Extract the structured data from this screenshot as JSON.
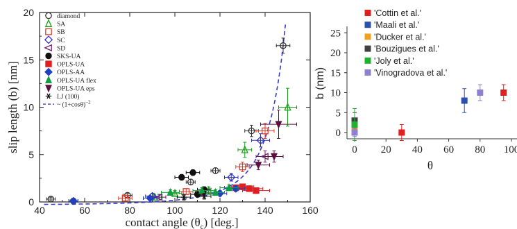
{
  "chart_data": [
    {
      "type": "scatter",
      "xlabel": "contact angle (θ",
      "xlabel_sub": "c",
      "xlabel_units": ")  [deg.]",
      "ylabel": "slip length (b)  [nm]",
      "xlim": [
        40,
        160
      ],
      "ylim": [
        0,
        20
      ],
      "xticks": [
        "40",
        "60",
        "80",
        "100",
        "120",
        "140",
        "160"
      ],
      "yticks": [
        "0",
        "5",
        "10",
        "15",
        "20"
      ],
      "grid": false,
      "legend_position": "top-left",
      "series": [
        {
          "name": "diamond",
          "marker": "circle-open",
          "color": "#333333",
          "points": [
            [
              45,
              0.3
            ],
            [
              55,
              0.1
            ],
            [
              79,
              0.7
            ],
            [
              107,
              2.1
            ],
            [
              118,
              3.3
            ],
            [
              134,
              7.5
            ],
            [
              148,
              16.5
            ]
          ],
          "xerr": [
            2,
            2,
            2,
            2,
            2,
            3,
            3
          ],
          "yerr": [
            0.2,
            0.2,
            0.2,
            0.3,
            0.3,
            0.6,
            0.8
          ]
        },
        {
          "name": "SA",
          "marker": "triangle-open",
          "color": "#1aa01a",
          "points": [
            [
              91,
              0.5
            ],
            [
              100,
              0.9
            ],
            [
              115,
              1.2
            ],
            [
              131,
              5.5
            ],
            [
              150,
              10.0
            ]
          ],
          "xerr": [
            3,
            3,
            3,
            3,
            4
          ],
          "yerr": [
            0.3,
            0.3,
            0.4,
            0.8,
            2.0
          ]
        },
        {
          "name": "SB",
          "marker": "square-open",
          "color": "#e03a2a",
          "points": [
            [
              78,
              0.4
            ],
            [
              105,
              1.1
            ],
            [
              130,
              3.7
            ],
            [
              140,
              7.5
            ]
          ],
          "xerr": [
            3,
            3,
            3,
            4
          ],
          "yerr": [
            0.3,
            0.3,
            0.5,
            0.8
          ]
        },
        {
          "name": "SC",
          "marker": "diamond-open",
          "color": "#3030c0",
          "points": [
            [
              90,
              0.6
            ],
            [
              125,
              2.6
            ],
            [
              138,
              6.5
            ]
          ],
          "xerr": [
            3,
            3,
            4
          ],
          "yerr": [
            0.3,
            0.4,
            0.7
          ]
        },
        {
          "name": "SD",
          "marker": "triangle-left-open",
          "color": "#6a1a6a",
          "points": [
            [
              93,
              0.5
            ],
            [
              112,
              1.0
            ],
            [
              140,
              4.8
            ]
          ],
          "xerr": [
            3,
            3,
            4
          ],
          "yerr": [
            0.3,
            0.3,
            0.6
          ]
        },
        {
          "name": "SKS-UA",
          "marker": "circle-filled",
          "color": "#111111",
          "points": [
            [
              103,
              2.6
            ],
            [
              108,
              3.1
            ],
            [
              110,
              0.8
            ],
            [
              113,
              1.3
            ]
          ],
          "xerr": [
            3,
            3,
            3,
            3
          ],
          "yerr": [
            0.3,
            0.3,
            0.3,
            0.3
          ]
        },
        {
          "name": "OPLS-UA",
          "marker": "square-filled",
          "color": "#e02020",
          "points": [
            [
              127,
              1.5
            ],
            [
              130,
              1.6
            ],
            [
              133,
              1.4
            ],
            [
              136,
              1.2
            ]
          ],
          "xerr": [
            5,
            5,
            6,
            6
          ],
          "yerr": [
            0.3,
            0.3,
            0.3,
            0.3
          ]
        },
        {
          "name": "OPLS-AA",
          "marker": "diamond-filled",
          "color": "#2040c0",
          "points": [
            [
              55,
              0.1
            ],
            [
              89,
              0.4
            ],
            [
              120,
              0.9
            ],
            [
              127,
              1.4
            ]
          ],
          "xerr": [
            2,
            3,
            3,
            4
          ],
          "yerr": [
            0.2,
            0.2,
            0.3,
            0.3
          ]
        },
        {
          "name": "OPLS-UA flex",
          "marker": "triangle-filled",
          "color": "#10a040",
          "points": [
            [
              98,
              1.0
            ],
            [
              112,
              1.2
            ],
            [
              118,
              1.0
            ],
            [
              124,
              1.5
            ]
          ],
          "xerr": [
            4,
            4,
            4,
            4
          ],
          "yerr": [
            0.3,
            0.3,
            0.3,
            0.3
          ]
        },
        {
          "name": "OPLS-UA eps",
          "marker": "triangle-down-filled",
          "color": "#5a1040",
          "points": [
            [
              137,
              3.9
            ],
            [
              146,
              8.2
            ],
            [
              144,
              4.8
            ]
          ],
          "xerr": [
            5,
            8,
            4
          ],
          "yerr": [
            0.5,
            1.5,
            0.6
          ]
        },
        {
          "name": "LJ (100)",
          "marker": "asterisk",
          "color": "#111111",
          "points": [
            [
              104,
              0.5
            ],
            [
              113,
              0.6
            ]
          ],
          "xerr": [
            3,
            3
          ],
          "yerr": [
            0.3,
            0.3
          ]
        }
      ],
      "fit": {
        "name": "~ (1+cosθ)",
        "name_sup": "−2",
        "style": "dashed",
        "color": "#3a3ad0",
        "equation": "b = 0.39*(1+cos(theta))^-2 - 0.39"
      }
    },
    {
      "type": "scatter",
      "xlabel": "θ",
      "ylabel": "b (nm)",
      "xlim": [
        -5,
        100
      ],
      "ylim": [
        -2,
        28
      ],
      "xticks": [
        "0",
        "20",
        "40",
        "60",
        "80",
        "100"
      ],
      "yticks": [
        "0",
        "5",
        "10",
        "15",
        "20",
        "25"
      ],
      "grid": false,
      "legend_position": "top-right",
      "series": [
        {
          "name": "'Cottin et al.'",
          "color": "#e02020",
          "points": [
            [
              30,
              0
            ],
            [
              95,
              10
            ]
          ],
          "yerr": [
            2,
            2
          ]
        },
        {
          "name": "'Maali et al.'",
          "color": "#2a50b0",
          "points": [
            [
              0,
              0.5
            ],
            [
              70,
              8
            ]
          ],
          "yerr": [
            1,
            3
          ]
        },
        {
          "name": "'Ducker et al.'",
          "color": "#f0a020",
          "points": [
            [
              0,
              1
            ]
          ],
          "yerr": [
            1
          ]
        },
        {
          "name": "'Bouzigues et al.'",
          "color": "#404040",
          "points": [
            [
              0,
              3
            ]
          ],
          "yerr": [
            2
          ]
        },
        {
          "name": "'Joly et al.'",
          "color": "#20b030",
          "points": [
            [
              0,
              2
            ]
          ],
          "yerr": [
            4
          ]
        },
        {
          "name": "'Vinogradova et al.'",
          "color": "#9080d0",
          "points": [
            [
              0,
              0
            ],
            [
              80,
              10
            ]
          ],
          "yerr": [
            1,
            2
          ]
        }
      ]
    }
  ]
}
